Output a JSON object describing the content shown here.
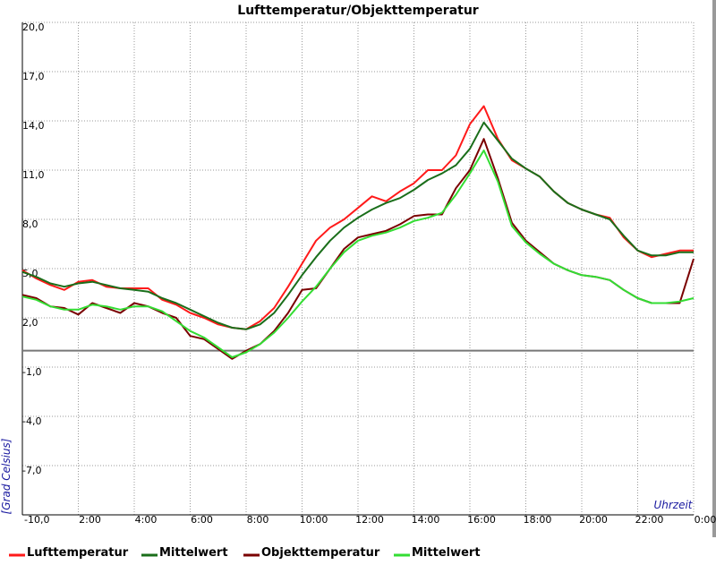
{
  "chart_data": {
    "type": "line",
    "title": "Lufttemperatur/Objekttemperatur",
    "x_label": "Uhrzeit",
    "y_label": "[Grad Celsius]",
    "x": [
      0,
      0.5,
      1,
      1.5,
      2,
      2.5,
      3,
      3.5,
      4,
      4.5,
      5,
      5.5,
      6,
      6.5,
      7,
      7.5,
      8,
      8.5,
      9,
      9.5,
      10,
      10.5,
      11,
      11.5,
      12,
      12.5,
      13,
      13.5,
      14,
      14.5,
      15,
      15.5,
      16,
      16.5,
      17,
      17.5,
      18,
      18.5,
      19,
      19.5,
      20,
      20.5,
      21,
      21.5,
      22,
      22.5,
      23,
      23.5,
      24
    ],
    "xlim": [
      0,
      24
    ],
    "xticks": [
      {
        "value": 2,
        "label": "2:00"
      },
      {
        "value": 4,
        "label": "4:00"
      },
      {
        "value": 6,
        "label": "6:00"
      },
      {
        "value": 8,
        "label": "8:00"
      },
      {
        "value": 10,
        "label": "10:00"
      },
      {
        "value": 12,
        "label": "12:00"
      },
      {
        "value": 14,
        "label": "14:00"
      },
      {
        "value": 16,
        "label": "16:00"
      },
      {
        "value": 18,
        "label": "18:00"
      },
      {
        "value": 20,
        "label": "20:00"
      },
      {
        "value": 22,
        "label": "22:00"
      },
      {
        "value": 24,
        "label": "0:00"
      }
    ],
    "ylim": [
      -10,
      20
    ],
    "yticks": [
      {
        "value": -10,
        "label": "-10,0"
      },
      {
        "value": -7,
        "label": "-7,0"
      },
      {
        "value": -4,
        "label": "-4,0"
      },
      {
        "value": -1,
        "label": "-1,0"
      },
      {
        "value": 2,
        "label": "2,0"
      },
      {
        "value": 5,
        "label": "5,0"
      },
      {
        "value": 8,
        "label": "8,0"
      },
      {
        "value": 11,
        "label": "11,0"
      },
      {
        "value": 14,
        "label": "14,0"
      },
      {
        "value": 17,
        "label": "17,0"
      },
      {
        "value": 20,
        "label": "20,0"
      }
    ],
    "grid": true,
    "series": [
      {
        "name": "Lufttemperatur",
        "color": "#ff1a1a",
        "values": [
          4.9,
          4.4,
          4.0,
          3.7,
          4.2,
          4.3,
          3.9,
          3.8,
          3.8,
          3.8,
          3.1,
          2.8,
          2.3,
          2.0,
          1.6,
          1.4,
          1.3,
          1.8,
          2.6,
          3.9,
          5.3,
          6.7,
          7.5,
          8.0,
          8.7,
          9.4,
          9.1,
          9.7,
          10.2,
          11.0,
          11.0,
          11.9,
          13.8,
          14.9,
          12.9,
          11.6,
          11.1,
          10.6,
          9.7,
          9.0,
          8.6,
          8.3,
          8.1,
          6.9,
          6.1,
          5.7,
          5.9,
          6.1,
          6.1
        ]
      },
      {
        "name": "Mittelwert",
        "color": "#1a6e1a",
        "values": [
          4.8,
          4.5,
          4.1,
          3.9,
          4.1,
          4.2,
          4.0,
          3.8,
          3.7,
          3.6,
          3.2,
          2.9,
          2.5,
          2.1,
          1.7,
          1.4,
          1.3,
          1.6,
          2.3,
          3.4,
          4.6,
          5.7,
          6.7,
          7.5,
          8.1,
          8.6,
          9.0,
          9.3,
          9.8,
          10.4,
          10.8,
          11.3,
          12.3,
          13.9,
          12.8,
          11.7,
          11.1,
          10.6,
          9.7,
          9.0,
          8.6,
          8.3,
          8.0,
          7.0,
          6.1,
          5.8,
          5.8,
          6.0,
          6.0
        ]
      },
      {
        "name": "Objekttemperatur",
        "color": "#7a0000",
        "values": [
          3.4,
          3.2,
          2.7,
          2.6,
          2.2,
          2.9,
          2.6,
          2.3,
          2.9,
          2.7,
          2.3,
          2.0,
          0.9,
          0.7,
          0.1,
          -0.5,
          0.0,
          0.4,
          1.2,
          2.3,
          3.7,
          3.8,
          5.0,
          6.2,
          6.9,
          7.1,
          7.3,
          7.7,
          8.2,
          8.3,
          8.3,
          9.9,
          11.0,
          12.9,
          10.5,
          7.8,
          6.7,
          6.0,
          5.3,
          4.9,
          4.6,
          4.5,
          4.3,
          3.7,
          3.2,
          2.9,
          2.9,
          2.9,
          5.6
        ]
      },
      {
        "name": "Mittelwert",
        "color": "#33dd33",
        "values": [
          3.3,
          3.1,
          2.7,
          2.5,
          2.5,
          2.8,
          2.7,
          2.5,
          2.7,
          2.7,
          2.4,
          1.8,
          1.2,
          0.8,
          0.2,
          -0.4,
          -0.1,
          0.4,
          1.1,
          2.0,
          3.0,
          3.9,
          5.0,
          6.0,
          6.7,
          7.0,
          7.2,
          7.5,
          7.9,
          8.1,
          8.4,
          9.5,
          10.8,
          12.2,
          10.3,
          7.6,
          6.6,
          5.9,
          5.3,
          4.9,
          4.6,
          4.5,
          4.3,
          3.7,
          3.2,
          2.9,
          2.9,
          3.0,
          3.2
        ]
      }
    ]
  }
}
